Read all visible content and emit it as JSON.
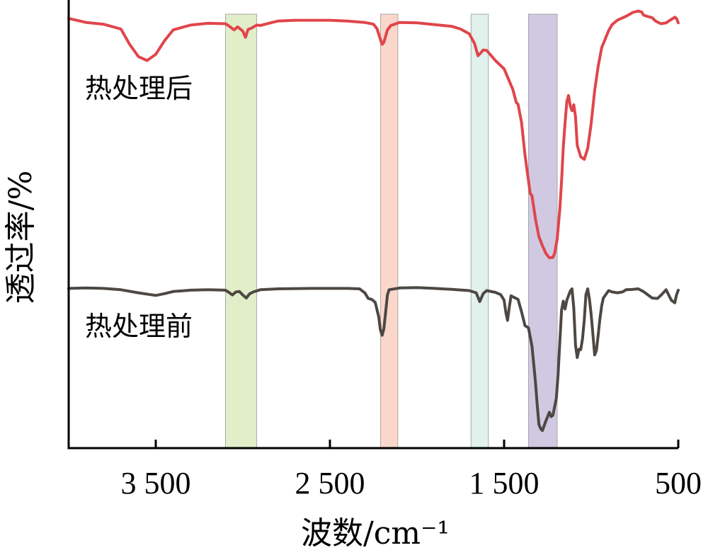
{
  "chart_data": {
    "type": "line",
    "xlabel": "波数/cm⁻¹",
    "ylabel": "透过率/%",
    "x_reversed": true,
    "xlim": [
      4000,
      500
    ],
    "x_ticks": [
      3500,
      2500,
      1500,
      500
    ],
    "x_tick_labels": [
      "3 500",
      "2 500",
      "1 500",
      "500"
    ],
    "ylim": [
      0,
      100
    ],
    "y_ticks_shown": false,
    "grid": false,
    "highlight_bands": [
      {
        "from": 3100,
        "to": 2920,
        "color": "#dcebbf"
      },
      {
        "from": 2210,
        "to": 2110,
        "color": "#f9cfc2"
      },
      {
        "from": 1690,
        "to": 1590,
        "color": "#dcefe9"
      },
      {
        "from": 1360,
        "to": 1195,
        "color": "#c9bfdd"
      }
    ],
    "series": [
      {
        "name": "热处理后",
        "color": "#e0454b",
        "points": [
          [
            4000,
            98.2
          ],
          [
            3900,
            97.3
          ],
          [
            3800,
            96.9
          ],
          [
            3700,
            95.8
          ],
          [
            3650,
            92.3
          ],
          [
            3600,
            89.5
          ],
          [
            3550,
            88.6
          ],
          [
            3500,
            90.0
          ],
          [
            3450,
            93.1
          ],
          [
            3400,
            95.6
          ],
          [
            3300,
            96.7
          ],
          [
            3200,
            97.1
          ],
          [
            3100,
            97.0
          ],
          [
            3080,
            96.5
          ],
          [
            3050,
            95.6
          ],
          [
            3030,
            96.3
          ],
          [
            3000,
            95.3
          ],
          [
            2985,
            93.9
          ],
          [
            2970,
            95.7
          ],
          [
            2950,
            96.0
          ],
          [
            2920,
            96.7
          ],
          [
            2900,
            96.6
          ],
          [
            2800,
            97.6
          ],
          [
            2700,
            97.8
          ],
          [
            2500,
            97.8
          ],
          [
            2400,
            97.6
          ],
          [
            2300,
            97.3
          ],
          [
            2250,
            96.9
          ],
          [
            2230,
            95.9
          ],
          [
            2210,
            93.4
          ],
          [
            2200,
            92.3
          ],
          [
            2190,
            92.8
          ],
          [
            2170,
            95.6
          ],
          [
            2150,
            96.6
          ],
          [
            2100,
            97.3
          ],
          [
            2000,
            97.2
          ],
          [
            1900,
            96.8
          ],
          [
            1800,
            96.4
          ],
          [
            1750,
            95.8
          ],
          [
            1700,
            94.7
          ],
          [
            1670,
            92.5
          ],
          [
            1650,
            89.7
          ],
          [
            1635,
            90.3
          ],
          [
            1620,
            91.0
          ],
          [
            1600,
            90.9
          ],
          [
            1550,
            88.6
          ],
          [
            1500,
            86.7
          ],
          [
            1450,
            82.0
          ],
          [
            1430,
            79.0
          ],
          [
            1420,
            78.6
          ],
          [
            1400,
            74.5
          ],
          [
            1380,
            67.0
          ],
          [
            1370,
            64.0
          ],
          [
            1350,
            58.2
          ],
          [
            1340,
            57.7
          ],
          [
            1320,
            52.4
          ],
          [
            1300,
            48.3
          ],
          [
            1280,
            46.3
          ],
          [
            1260,
            44.5
          ],
          [
            1240,
            43.5
          ],
          [
            1220,
            43.6
          ],
          [
            1210,
            44.5
          ],
          [
            1195,
            47.8
          ],
          [
            1180,
            54.6
          ],
          [
            1170,
            61.1
          ],
          [
            1160,
            68.8
          ],
          [
            1150,
            74.3
          ],
          [
            1140,
            79.2
          ],
          [
            1130,
            80.6
          ],
          [
            1120,
            78.2
          ],
          [
            1110,
            77.1
          ],
          [
            1100,
            78.5
          ],
          [
            1090,
            75.7
          ],
          [
            1080,
            69.2
          ],
          [
            1060,
            66.6
          ],
          [
            1040,
            66.0
          ],
          [
            1020,
            68.5
          ],
          [
            1000,
            74.2
          ],
          [
            980,
            81.7
          ],
          [
            960,
            87.2
          ],
          [
            940,
            91.5
          ],
          [
            900,
            95.4
          ],
          [
            880,
            96.8
          ],
          [
            850,
            97.8
          ],
          [
            800,
            98.7
          ],
          [
            760,
            99.6
          ],
          [
            730,
            99.9
          ],
          [
            710,
            99.7
          ],
          [
            700,
            99.0
          ],
          [
            680,
            98.7
          ],
          [
            650,
            98.4
          ],
          [
            630,
            97.6
          ],
          [
            600,
            97.0
          ],
          [
            570,
            97.2
          ],
          [
            540,
            98.0
          ],
          [
            520,
            98.5
          ],
          [
            510,
            98.2
          ],
          [
            500,
            97.2
          ]
        ]
      },
      {
        "name": "热处理前",
        "color": "#4d4843",
        "points": [
          [
            4000,
            36.5
          ],
          [
            3900,
            36.6
          ],
          [
            3800,
            36.5
          ],
          [
            3700,
            36.2
          ],
          [
            3600,
            35.5
          ],
          [
            3500,
            34.9
          ],
          [
            3450,
            35.3
          ],
          [
            3400,
            35.8
          ],
          [
            3300,
            36.1
          ],
          [
            3200,
            36.2
          ],
          [
            3100,
            36.1
          ],
          [
            3080,
            35.6
          ],
          [
            3060,
            35.0
          ],
          [
            3040,
            35.7
          ],
          [
            3020,
            35.8
          ],
          [
            3000,
            35.0
          ],
          [
            2980,
            34.3
          ],
          [
            2960,
            35.3
          ],
          [
            2940,
            35.7
          ],
          [
            2900,
            36.2
          ],
          [
            2800,
            36.4
          ],
          [
            2600,
            36.5
          ],
          [
            2400,
            36.5
          ],
          [
            2330,
            36.4
          ],
          [
            2300,
            35.5
          ],
          [
            2280,
            34.2
          ],
          [
            2260,
            34.0
          ],
          [
            2240,
            33.3
          ],
          [
            2220,
            30.0
          ],
          [
            2210,
            27.0
          ],
          [
            2200,
            25.8
          ],
          [
            2190,
            27.4
          ],
          [
            2180,
            31.1
          ],
          [
            2170,
            35.0
          ],
          [
            2160,
            36.2
          ],
          [
            2100,
            36.6
          ],
          [
            2000,
            36.7
          ],
          [
            1900,
            36.5
          ],
          [
            1800,
            36.3
          ],
          [
            1700,
            36.0
          ],
          [
            1660,
            35.5
          ],
          [
            1640,
            33.5
          ],
          [
            1620,
            35.3
          ],
          [
            1600,
            36.0
          ],
          [
            1550,
            35.6
          ],
          [
            1520,
            35.1
          ],
          [
            1500,
            33.8
          ],
          [
            1490,
            31.0
          ],
          [
            1480,
            29.2
          ],
          [
            1470,
            32.3
          ],
          [
            1460,
            34.8
          ],
          [
            1440,
            34.4
          ],
          [
            1420,
            34.0
          ],
          [
            1400,
            31.2
          ],
          [
            1380,
            28.0
          ],
          [
            1360,
            27.5
          ],
          [
            1340,
            23.3
          ],
          [
            1320,
            15.1
          ],
          [
            1310,
            10.0
          ],
          [
            1300,
            5.4
          ],
          [
            1290,
            4.4
          ],
          [
            1280,
            4.0
          ],
          [
            1260,
            6.2
          ],
          [
            1240,
            8.2
          ],
          [
            1230,
            7.2
          ],
          [
            1220,
            7.5
          ],
          [
            1200,
            11.4
          ],
          [
            1190,
            16.9
          ],
          [
            1180,
            24.3
          ],
          [
            1170,
            31.6
          ],
          [
            1160,
            33.6
          ],
          [
            1150,
            31.8
          ],
          [
            1140,
            33.8
          ],
          [
            1120,
            35.9
          ],
          [
            1110,
            36.4
          ],
          [
            1100,
            32.1
          ],
          [
            1090,
            23.5
          ],
          [
            1080,
            20.7
          ],
          [
            1070,
            22.6
          ],
          [
            1060,
            22.5
          ],
          [
            1050,
            24.9
          ],
          [
            1040,
            29.2
          ],
          [
            1030,
            35.1
          ],
          [
            1020,
            36.4
          ],
          [
            1010,
            34.1
          ],
          [
            1000,
            30.5
          ],
          [
            990,
            25.9
          ],
          [
            980,
            21.3
          ],
          [
            970,
            22.3
          ],
          [
            960,
            25.7
          ],
          [
            950,
            29.5
          ],
          [
            940,
            32.5
          ],
          [
            930,
            34.3
          ],
          [
            900,
            36.0
          ],
          [
            880,
            35.7
          ],
          [
            850,
            35.5
          ],
          [
            820,
            35.7
          ],
          [
            800,
            36.2
          ],
          [
            760,
            36.3
          ],
          [
            730,
            36.4
          ],
          [
            700,
            35.8
          ],
          [
            650,
            34.3
          ],
          [
            620,
            34.2
          ],
          [
            600,
            34.9
          ],
          [
            570,
            36.2
          ],
          [
            540,
            33.8
          ],
          [
            520,
            33.2
          ],
          [
            510,
            35.0
          ],
          [
            500,
            36.1
          ]
        ]
      }
    ]
  }
}
